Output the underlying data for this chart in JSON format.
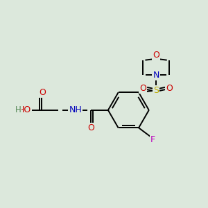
{
  "background_color": "#dce8dc",
  "atom_colors": {
    "C": "#000000",
    "N": "#0000bb",
    "O": "#cc0000",
    "S": "#bbaa00",
    "F": "#bb00bb",
    "H": "#558855"
  },
  "figsize": [
    3.0,
    3.0
  ],
  "dpi": 100,
  "lw": 1.4
}
